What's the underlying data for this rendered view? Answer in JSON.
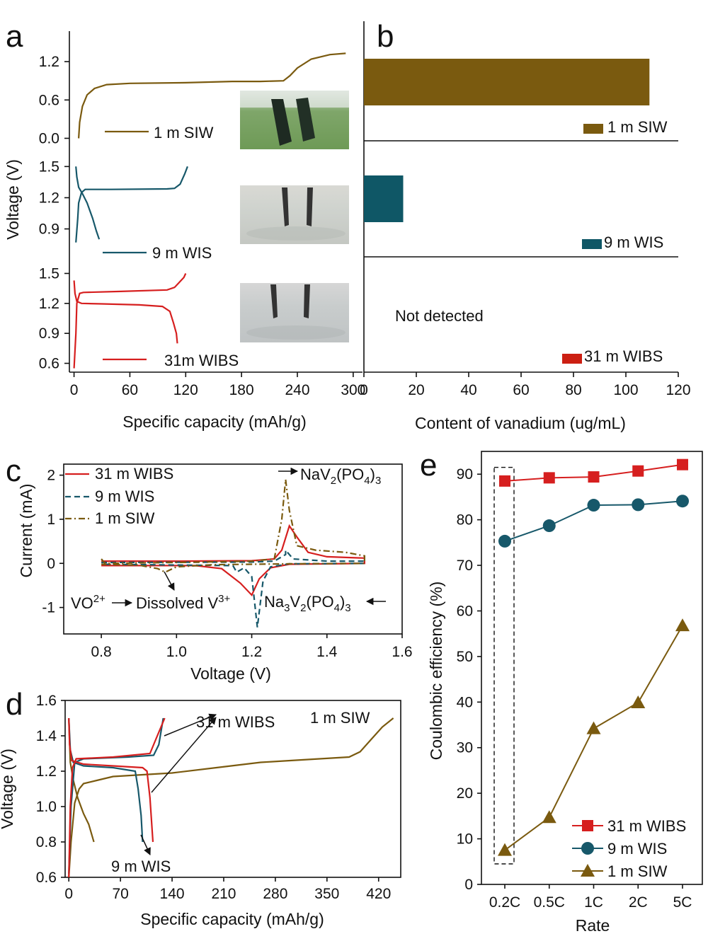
{
  "chart_data": [
    {
      "panel": "a",
      "type": "line",
      "xlabel": "Specific capacity (mAh/g)",
      "ylabel": "Voltage (V)",
      "xlim": [
        -5,
        310
      ],
      "xticks": [
        0,
        60,
        120,
        180,
        240,
        300
      ],
      "sub": [
        {
          "label": "1 m SIW",
          "color": "#7a5a0f",
          "ylim": [
            -0.05,
            1.5
          ],
          "yticks": [
            0.0,
            0.6,
            1.2
          ],
          "ytick_labels": [
            "0.0",
            "0.6",
            "1.2"
          ],
          "series": [
            [
              [
                5,
                0.0
              ],
              [
                6,
                0.25
              ],
              [
                9,
                0.5
              ],
              [
                14,
                0.68
              ],
              [
                22,
                0.78
              ],
              [
                35,
                0.84
              ],
              [
                60,
                0.86
              ],
              [
                120,
                0.87
              ],
              [
                170,
                0.89
              ],
              [
                200,
                0.89
              ],
              [
                225,
                0.9
              ],
              [
                232,
                0.98
              ],
              [
                240,
                1.1
              ],
              [
                255,
                1.24
              ],
              [
                275,
                1.31
              ],
              [
                292,
                1.33
              ]
            ]
          ]
        },
        {
          "label": "9 m WIS",
          "color": "#17586a",
          "ylim": [
            0.72,
            1.55
          ],
          "yticks": [
            0.9,
            1.2,
            1.5
          ],
          "ytick_labels": [
            "0.9",
            "1.2",
            "1.5"
          ],
          "series": [
            [
              [
                2,
                0.77
              ],
              [
                4,
                1.0
              ],
              [
                5,
                1.15
              ],
              [
                8,
                1.25
              ],
              [
                12,
                1.28
              ],
              [
                40,
                1.28
              ],
              [
                100,
                1.285
              ],
              [
                108,
                1.29
              ],
              [
                114,
                1.33
              ],
              [
                119,
                1.43
              ],
              [
                122,
                1.5
              ]
            ],
            [
              [
                2,
                1.5
              ],
              [
                3,
                1.4
              ],
              [
                5,
                1.3
              ],
              [
                9,
                1.24
              ],
              [
                14,
                1.15
              ],
              [
                20,
                1.0
              ],
              [
                24,
                0.88
              ],
              [
                27,
                0.8
              ]
            ]
          ]
        },
        {
          "label": "31m WIBS",
          "color": "#d61f1f",
          "ylim": [
            0.54,
            1.56
          ],
          "yticks": [
            0.6,
            0.9,
            1.2,
            1.5
          ],
          "ytick_labels": [
            "0.6",
            "0.9",
            "1.2",
            "1.5"
          ],
          "series": [
            [
              [
                0,
                0.55
              ],
              [
                2,
                0.9
              ],
              [
                3,
                1.2
              ],
              [
                6,
                1.3
              ],
              [
                10,
                1.31
              ],
              [
                50,
                1.32
              ],
              [
                100,
                1.335
              ],
              [
                108,
                1.36
              ],
              [
                113,
                1.41
              ],
              [
                118,
                1.46
              ],
              [
                120,
                1.5
              ]
            ],
            [
              [
                0,
                1.43
              ],
              [
                1,
                1.3
              ],
              [
                3,
                1.22
              ],
              [
                8,
                1.2
              ],
              [
                30,
                1.195
              ],
              [
                70,
                1.185
              ],
              [
                95,
                1.17
              ],
              [
                103,
                1.12
              ],
              [
                107,
                1.0
              ],
              [
                110,
                0.9
              ],
              [
                111,
                0.8
              ]
            ]
          ]
        }
      ],
      "legend": [
        "1 m SIW",
        "9 m WIS",
        "31m WIBS"
      ]
    },
    {
      "panel": "b",
      "type": "bar",
      "xlabel": "Content of vanadium (ug/mL)",
      "xlim": [
        0,
        120
      ],
      "xticks": [
        0,
        20,
        40,
        60,
        80,
        100,
        120
      ],
      "categories": [
        "1 m SIW",
        "9 m WIS",
        "31 m WIBS"
      ],
      "values": [
        109,
        15,
        0
      ],
      "colors": [
        "#7a5a0f",
        "#0f5766",
        "#cc1f12"
      ],
      "annotation": "Not detected"
    },
    {
      "panel": "c",
      "type": "line",
      "xlabel": "Voltage (V)",
      "ylabel": "Current (mA)",
      "xlim": [
        0.7,
        1.6
      ],
      "ylim": [
        -1.6,
        2.25
      ],
      "xticks": [
        0.8,
        1.0,
        1.2,
        1.4,
        1.6
      ],
      "xtick_labels": [
        "0.8",
        "1.0",
        "1.2",
        "1.4",
        "1.6"
      ],
      "yticks": [
        -1,
        0,
        1,
        2
      ],
      "ytick_labels": [
        "-1",
        "0",
        "1",
        "2"
      ],
      "series": [
        {
          "name": "31 m WIBS",
          "color": "#d61f1f",
          "dash": "",
          "points": [
            [
              0.8,
              0.05
            ],
            [
              1.0,
              0.05
            ],
            [
              1.2,
              0.06
            ],
            [
              1.26,
              0.1
            ],
            [
              1.28,
              0.3
            ],
            [
              1.3,
              0.85
            ],
            [
              1.32,
              0.6
            ],
            [
              1.35,
              0.25
            ],
            [
              1.4,
              0.15
            ],
            [
              1.5,
              0.12
            ],
            [
              1.5,
              0.0
            ],
            [
              1.3,
              -0.02
            ],
            [
              1.25,
              -0.1
            ],
            [
              1.22,
              -0.35
            ],
            [
              1.2,
              -0.72
            ],
            [
              1.17,
              -0.45
            ],
            [
              1.12,
              -0.12
            ],
            [
              1.05,
              -0.05
            ],
            [
              0.8,
              -0.05
            ]
          ]
        },
        {
          "name": "9 m WIS",
          "color": "#17586a",
          "dash": "8,5",
          "points": [
            [
              0.8,
              0.02
            ],
            [
              1.2,
              0.03
            ],
            [
              1.26,
              0.05
            ],
            [
              1.29,
              0.2
            ],
            [
              1.29,
              0.3
            ],
            [
              1.31,
              0.1
            ],
            [
              1.4,
              0.05
            ],
            [
              1.5,
              0.05
            ],
            [
              1.5,
              0.0
            ],
            [
              1.3,
              -0.01
            ],
            [
              1.25,
              -0.08
            ],
            [
              1.23,
              -0.4
            ],
            [
              1.215,
              -1.45
            ],
            [
              1.2,
              -0.3
            ],
            [
              1.18,
              -0.1
            ],
            [
              1.16,
              -0.2
            ],
            [
              1.15,
              -0.05
            ],
            [
              0.8,
              -0.02
            ]
          ]
        },
        {
          "name": "1 m SIW",
          "color": "#7a5a0f",
          "dash": "9,4,2,4",
          "points": [
            [
              0.8,
              0.1
            ],
            [
              0.81,
              0.0
            ],
            [
              1.0,
              0.02
            ],
            [
              1.2,
              0.05
            ],
            [
              1.26,
              0.1
            ],
            [
              1.28,
              1.0
            ],
            [
              1.29,
              1.9
            ],
            [
              1.3,
              1.2
            ],
            [
              1.32,
              0.4
            ],
            [
              1.37,
              0.3
            ],
            [
              1.45,
              0.25
            ],
            [
              1.5,
              0.17
            ],
            [
              1.5,
              0.0
            ],
            [
              1.3,
              -0.01
            ],
            [
              1.1,
              -0.03
            ],
            [
              1.0,
              -0.08
            ],
            [
              0.97,
              -0.2
            ],
            [
              0.95,
              -0.12
            ],
            [
              0.9,
              -0.04
            ],
            [
              0.8,
              -0.02
            ]
          ]
        }
      ],
      "annotations": [
        "NaV",
        "2",
        "(PO",
        "4",
        ")",
        "3",
        "VO",
        "2+",
        "Dissolved V",
        "3+",
        "Na",
        "3",
        "V",
        "2",
        "(PO",
        "4",
        ")",
        "3"
      ]
    },
    {
      "panel": "d",
      "type": "line",
      "xlabel": "Specific capacity (mAh/g)",
      "ylabel": "Voltage (V)",
      "xlim": [
        -5,
        450
      ],
      "ylim": [
        0.6,
        1.6
      ],
      "xticks": [
        0,
        70,
        140,
        210,
        280,
        350,
        420
      ],
      "yticks": [
        0.6,
        0.8,
        1.0,
        1.2,
        1.4,
        1.6
      ],
      "ytick_labels": [
        "0.6",
        "0.8",
        "1.0",
        "1.2",
        "1.4",
        "1.6"
      ],
      "series": [
        {
          "name": "31 m WIBS",
          "color": "#d61f1f",
          "curves": [
            [
              [
                0,
                0.6
              ],
              [
                2,
                1.0
              ],
              [
                5,
                1.22
              ],
              [
                10,
                1.27
              ],
              [
                60,
                1.28
              ],
              [
                110,
                1.3
              ],
              [
                118,
                1.38
              ],
              [
                125,
                1.45
              ],
              [
                130,
                1.5
              ]
            ],
            [
              [
                0,
                1.5
              ],
              [
                1,
                1.35
              ],
              [
                4,
                1.26
              ],
              [
                20,
                1.24
              ],
              [
                60,
                1.23
              ],
              [
                100,
                1.22
              ],
              [
                106,
                1.2
              ],
              [
                110,
                1.05
              ],
              [
                114,
                0.8
              ]
            ]
          ]
        },
        {
          "name": "9 m WIS",
          "color": "#17586a",
          "curves": [
            [
              [
                0,
                0.62
              ],
              [
                3,
                1.0
              ],
              [
                8,
                1.25
              ],
              [
                20,
                1.27
              ],
              [
                80,
                1.28
              ],
              [
                115,
                1.29
              ],
              [
                122,
                1.35
              ],
              [
                128,
                1.5
              ]
            ],
            [
              [
                0,
                1.5
              ],
              [
                2,
                1.32
              ],
              [
                6,
                1.25
              ],
              [
                20,
                1.23
              ],
              [
                60,
                1.22
              ],
              [
                90,
                1.2
              ],
              [
                94,
                1.1
              ],
              [
                98,
                0.95
              ],
              [
                100,
                0.8
              ]
            ]
          ]
        },
        {
          "name": "1 m SIW",
          "color": "#7a5a0f",
          "curves": [
            [
              [
                0,
                0.6
              ],
              [
                3,
                0.8
              ],
              [
                8,
                1.02
              ],
              [
                14,
                1.1
              ],
              [
                20,
                1.13
              ],
              [
                40,
                1.15
              ],
              [
                60,
                1.17
              ],
              [
                100,
                1.18
              ],
              [
                140,
                1.19
              ],
              [
                200,
                1.22
              ],
              [
                260,
                1.25
              ],
              [
                300,
                1.26
              ],
              [
                340,
                1.27
              ],
              [
                380,
                1.28
              ],
              [
                395,
                1.31
              ],
              [
                410,
                1.38
              ],
              [
                425,
                1.45
              ],
              [
                440,
                1.5
              ]
            ],
            [
              [
                0,
                1.5
              ],
              [
                2,
                1.25
              ],
              [
                6,
                1.15
              ],
              [
                12,
                1.05
              ],
              [
                20,
                0.96
              ],
              [
                27,
                0.9
              ],
              [
                34,
                0.8
              ]
            ]
          ]
        }
      ],
      "labels": [
        "31 m WIBS",
        "1 m SIW",
        "9 m WIS"
      ]
    },
    {
      "panel": "e",
      "type": "line",
      "xlabel": "Rate",
      "ylabel": "Coulombic efficiency (%)",
      "categories": [
        "0.2C",
        "0.5C",
        "1C",
        "2C",
        "5C"
      ],
      "ylim": [
        0,
        95
      ],
      "yticks": [
        0,
        10,
        20,
        30,
        40,
        50,
        60,
        70,
        80,
        90
      ],
      "series": [
        {
          "name": "31 m WIBS",
          "color": "#d61f1f",
          "marker": "square",
          "values": [
            88.5,
            89.2,
            89.4,
            90.7,
            92.1
          ]
        },
        {
          "name": "9 m WIS",
          "color": "#17586a",
          "marker": "circle",
          "values": [
            75.3,
            78.7,
            83.2,
            83.3,
            84.1
          ]
        },
        {
          "name": "1 m SIW",
          "color": "#7a5a0f",
          "marker": "triangle",
          "values": [
            7.5,
            14.7,
            34.2,
            39.9,
            56.8
          ]
        }
      ]
    }
  ],
  "panel_letters": [
    "a",
    "b",
    "c",
    "d",
    "e"
  ]
}
